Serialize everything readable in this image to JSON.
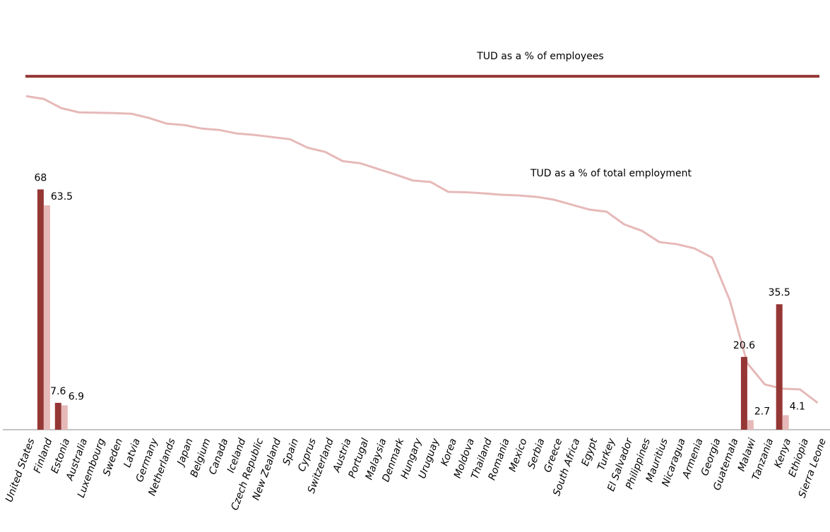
{
  "chart_data": {
    "type": "bar",
    "categories": [
      "United States",
      "Finland",
      "Estonia",
      "Australia",
      "Luxembourg",
      "Sweden",
      "Latvia",
      "Germany",
      "Netherlands",
      "Japan",
      "Belgium",
      "Canada",
      "Iceland",
      "Czech Republic",
      "New Zealand",
      "Spain",
      "Cyprus",
      "Switzerland",
      "Austria",
      "Portugal",
      "Malaysia",
      "Denmark",
      "Hungary",
      "Uruguay",
      "Korea",
      "Moldova",
      "Thailand",
      "Romania",
      "Mexico",
      "Serbia",
      "Greece",
      "South Africa",
      "Egypt",
      "Turkey",
      "El Salvador",
      "Philippines",
      "Mauritius",
      "Nicaragua",
      "Armenia",
      "Georgia",
      "Guatemala",
      "Malawi",
      "Tanzania",
      "Kenya",
      "Ethiopia",
      "Sierra Leone"
    ],
    "series": [
      {
        "color": "#953735",
        "values": [
          null,
          68,
          7.6,
          null,
          null,
          null,
          null,
          null,
          null,
          null,
          null,
          null,
          null,
          null,
          null,
          null,
          null,
          null,
          null,
          null,
          null,
          null,
          null,
          null,
          null,
          null,
          null,
          null,
          null,
          null,
          null,
          null,
          null,
          null,
          null,
          null,
          null,
          null,
          null,
          null,
          null,
          20.6,
          null,
          35.5,
          null,
          null
        ]
      },
      {
        "color": "#e6b9b8",
        "values": [
          null,
          63.5,
          6.9,
          null,
          null,
          null,
          null,
          null,
          null,
          null,
          null,
          null,
          null,
          null,
          null,
          null,
          null,
          null,
          null,
          null,
          null,
          null,
          null,
          null,
          null,
          null,
          null,
          null,
          null,
          null,
          null,
          null,
          null,
          null,
          null,
          null,
          null,
          null,
          null,
          null,
          null,
          2.7,
          null,
          4.1,
          null,
          null
        ]
      }
    ],
    "lines": [
      {
        "color": "#e6b9b8",
        "values": [
          94.4,
          93.6,
          91.0,
          89.8,
          89.7,
          89.6,
          89.4,
          88.2,
          86.6,
          86.2,
          85.2,
          84.8,
          83.8,
          83.4,
          82.8,
          82.2,
          79.8,
          78.6,
          76.0,
          75.4,
          73.8,
          72.2,
          70.5,
          70.1,
          67.3,
          67.2,
          66.9,
          66.5,
          66.3,
          65.9,
          65.1,
          63.7,
          62.3,
          61.7,
          58.1,
          56.3,
          53.1,
          52.5,
          51.3,
          48.7,
          36.7,
          18.8,
          12.8,
          11.6,
          11.4,
          7.6
        ]
      }
    ],
    "reference_line": {
      "value": 100,
      "color": "#953735"
    },
    "annotations": [
      "TUD as a % of employees",
      "TUD as a % of total employment"
    ],
    "ylim": [
      0,
      120
    ]
  }
}
